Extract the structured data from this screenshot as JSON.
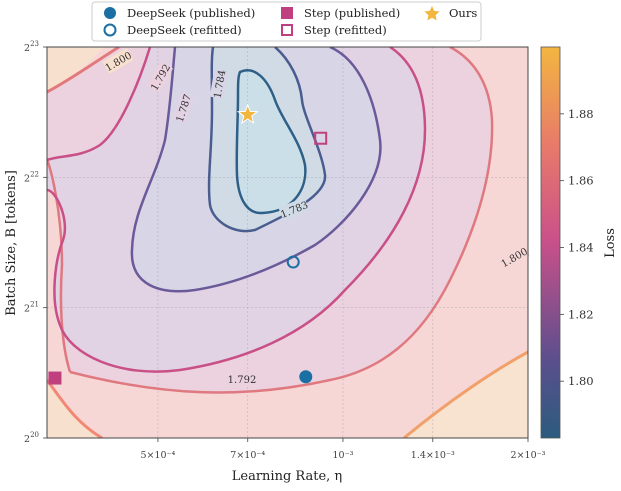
{
  "chart_data": {
    "type": "contour",
    "xlabel": "Learning Rate, η",
    "ylabel": "Batch Size, B [tokens]",
    "x_scale": "log",
    "y_scale": "log2",
    "xlim": [
      0.00033,
      0.002
    ],
    "ylim_log2": [
      20,
      23
    ],
    "x_ticks": [
      {
        "value": 0.0005,
        "label": "5×10⁻⁴"
      },
      {
        "value": 0.0007,
        "label": "7×10⁻⁴"
      },
      {
        "value": 0.001,
        "label": "10⁻³"
      },
      {
        "value": 0.0014,
        "label": "1.4×10⁻³"
      },
      {
        "value": 0.002,
        "label": "2×10⁻³"
      }
    ],
    "y_ticks": [
      {
        "value": 20,
        "base": "2",
        "exp": "20"
      },
      {
        "value": 21,
        "base": "2",
        "exp": "21"
      },
      {
        "value": 22,
        "base": "2",
        "exp": "22"
      },
      {
        "value": 23,
        "base": "2",
        "exp": "23"
      }
    ],
    "grid": true,
    "contour_levels": [
      1.783,
      1.784,
      1.787,
      1.792,
      1.8
    ],
    "contour_labels": [
      {
        "text": "1.800"
      },
      {
        "text": "1.792"
      },
      {
        "text": "1.787"
      },
      {
        "text": "1.784"
      },
      {
        "text": "1.783"
      },
      {
        "text": "1.792"
      },
      {
        "text": "1.800"
      }
    ],
    "points": [
      {
        "series": "DeepSeek (published)",
        "lr": 0.00087,
        "log2_bs": 20.47
      },
      {
        "series": "DeepSeek (refitted)",
        "lr": 0.00083,
        "log2_bs": 21.35
      },
      {
        "series": "Step (published)",
        "lr": 0.00034,
        "log2_bs": 20.46
      },
      {
        "series": "Step (refitted)",
        "lr": 0.00092,
        "log2_bs": 22.3
      },
      {
        "series": "Ours",
        "lr": 0.0007,
        "log2_bs": 22.48
      }
    ],
    "legend": {
      "placement": "top-center",
      "entries": [
        {
          "label": "DeepSeek (published)",
          "marker": "filled-circle",
          "color": "#1a6fa3"
        },
        {
          "label": "DeepSeek (refitted)",
          "marker": "hollow-circle",
          "color": "#1a6fa3"
        },
        {
          "label": "Step (published)",
          "marker": "filled-square",
          "color": "#c0407f"
        },
        {
          "label": "Step (refitted)",
          "marker": "hollow-square",
          "color": "#c0407f"
        },
        {
          "label": "Ours",
          "marker": "star",
          "color": "#f2b640"
        }
      ]
    },
    "colorbar": {
      "label": "Loss",
      "range": [
        1.783,
        1.9
      ],
      "ticks": [
        {
          "value": 1.8,
          "label": "1.80"
        },
        {
          "value": 1.82,
          "label": "1.82"
        },
        {
          "value": 1.84,
          "label": "1.84"
        },
        {
          "value": 1.86,
          "label": "1.86"
        },
        {
          "value": 1.88,
          "label": "1.88"
        }
      ],
      "colors": [
        "#2b5b7e",
        "#5b4f8c",
        "#c8508a",
        "#e87a6a",
        "#f2b640"
      ]
    }
  }
}
